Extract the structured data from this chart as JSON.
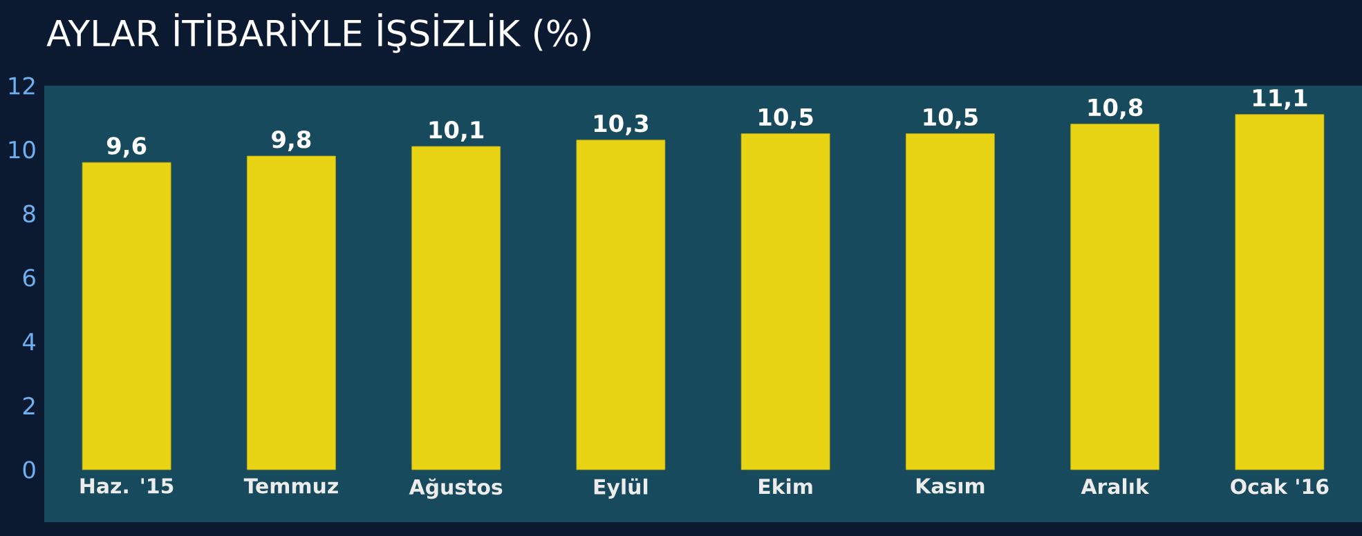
{
  "chart_data": {
    "type": "bar",
    "title": "AYLAR İTİBARİYLE İŞSİZLİK (%)",
    "categories": [
      "Haz. '15",
      "Temmuz",
      "Ağustos",
      "Eylül",
      "Ekim",
      "Kasım",
      "Aralık",
      "Ocak '16"
    ],
    "values": [
      9.6,
      9.8,
      10.1,
      10.3,
      10.5,
      10.5,
      10.8,
      11.1
    ],
    "value_labels": [
      "9,6",
      "9,8",
      "10,1",
      "10,3",
      "10,5",
      "10,5",
      "10,8",
      "11,1"
    ],
    "color": "#e8d414",
    "ylim": [
      0,
      12
    ],
    "yticks": [
      0,
      2,
      4,
      6,
      8,
      10,
      12
    ],
    "grid": false
  }
}
